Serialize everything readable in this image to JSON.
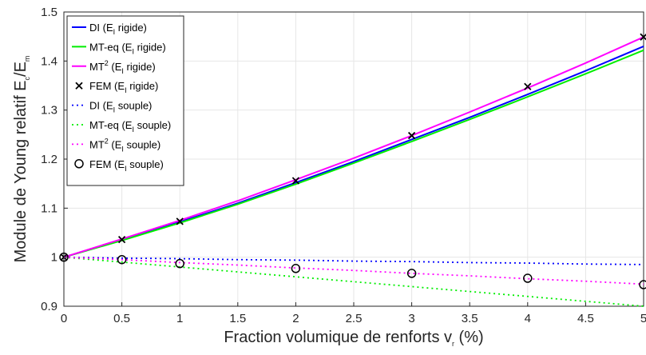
{
  "chart_data": {
    "type": "line",
    "xlabel": {
      "main": "Fraction volumique de renforts v",
      "sub": "r",
      "after": " (%)"
    },
    "ylabel": {
      "main": "Module de Young relatif E",
      "sub1": "c",
      "mid": "/E",
      "sub2": "m"
    },
    "xlim": [
      0,
      5
    ],
    "ylim": [
      0.9,
      1.5
    ],
    "x_ticks": [
      "0",
      "0.5",
      "1",
      "1.5",
      "2",
      "2.5",
      "3",
      "3.5",
      "4",
      "4.5",
      "5"
    ],
    "y_ticks": [
      "0.9",
      "1",
      "1.1",
      "1.2",
      "1.3",
      "1.4",
      "1.5"
    ],
    "grid": true,
    "legend_position": "top-left",
    "series": [
      {
        "name": "DI (Eₗ rigide)",
        "label_pre": "DI (E",
        "label_sub": "I",
        "label_post": " rigide)",
        "color": "#0000ff",
        "style": "solid",
        "x": [
          0,
          0.5,
          1,
          1.5,
          2,
          2.5,
          3,
          3.5,
          4,
          4.5,
          5
        ],
        "y": [
          1.0,
          1.035,
          1.072,
          1.11,
          1.152,
          1.195,
          1.24,
          1.285,
          1.332,
          1.38,
          1.43
        ]
      },
      {
        "name": "MT-eq (Eₗ rigide)",
        "label_pre": "MT-eq (E",
        "label_sub": "I",
        "label_post": " rigide)",
        "color": "#00ee00",
        "style": "solid",
        "x": [
          0,
          0.5,
          1,
          1.5,
          2,
          2.5,
          3,
          3.5,
          4,
          4.5,
          5
        ],
        "y": [
          1.0,
          1.034,
          1.07,
          1.108,
          1.149,
          1.192,
          1.236,
          1.281,
          1.327,
          1.374,
          1.422
        ]
      },
      {
        "name": "MT² (Eₗ rigide)",
        "label_pre": "MT",
        "label_sup": "2",
        "label_mid": " (E",
        "label_sub": "I",
        "label_post": " rigide)",
        "color": "#ff00ff",
        "style": "solid",
        "x": [
          0,
          0.5,
          1,
          1.5,
          2,
          2.5,
          3,
          3.5,
          4,
          4.5,
          5
        ],
        "y": [
          1.0,
          1.037,
          1.075,
          1.115,
          1.158,
          1.202,
          1.248,
          1.296,
          1.345,
          1.396,
          1.449
        ]
      },
      {
        "name": "FEM (Eₗ rigide)",
        "label_pre": "FEM (E",
        "label_sub": "I",
        "label_post": " rigide)",
        "color": "#000000",
        "style": "marker-x",
        "x": [
          0,
          0.5,
          1,
          2,
          3,
          4,
          5
        ],
        "y": [
          1.0,
          1.036,
          1.073,
          1.156,
          1.248,
          1.348,
          1.449
        ]
      },
      {
        "name": "DI (Eₗ souple)",
        "label_pre": "DI (E",
        "label_sub": "I",
        "label_post": " souple)",
        "color": "#0000ff",
        "style": "dotted",
        "x": [
          0,
          0.5,
          1,
          1.5,
          2,
          2.5,
          3,
          3.5,
          4,
          4.5,
          5
        ],
        "y": [
          1.0,
          0.998,
          0.997,
          0.995,
          0.994,
          0.992,
          0.991,
          0.989,
          0.988,
          0.986,
          0.985
        ]
      },
      {
        "name": "MT-eq (Eₗ souple)",
        "label_pre": "MT-eq (E",
        "label_sub": "I",
        "label_post": " souple)",
        "color": "#00ee00",
        "style": "dotted",
        "x": [
          0,
          0.5,
          1,
          1.5,
          2,
          2.5,
          3,
          3.5,
          4,
          4.5,
          5
        ],
        "y": [
          1.0,
          0.99,
          0.98,
          0.97,
          0.96,
          0.95,
          0.94,
          0.93,
          0.92,
          0.91,
          0.9
        ]
      },
      {
        "name": "MT² (Eₗ souple)",
        "label_pre": "MT",
        "label_sup": "2",
        "label_mid": " (E",
        "label_sub": "I",
        "label_post": " souple)",
        "color": "#ff00ff",
        "style": "dotted",
        "x": [
          0,
          0.5,
          1,
          1.5,
          2,
          2.5,
          3,
          3.5,
          4,
          4.5,
          5
        ],
        "y": [
          1.0,
          0.995,
          0.989,
          0.984,
          0.978,
          0.973,
          0.967,
          0.962,
          0.956,
          0.951,
          0.945
        ]
      },
      {
        "name": "FEM (Eₗ souple)",
        "label_pre": "FEM (E",
        "label_sub": "I",
        "label_post": " souple)",
        "color": "#000000",
        "style": "marker-o",
        "x": [
          0,
          0.5,
          1,
          2,
          3,
          4,
          5
        ],
        "y": [
          1.0,
          0.995,
          0.987,
          0.977,
          0.967,
          0.957,
          0.944
        ]
      }
    ]
  }
}
